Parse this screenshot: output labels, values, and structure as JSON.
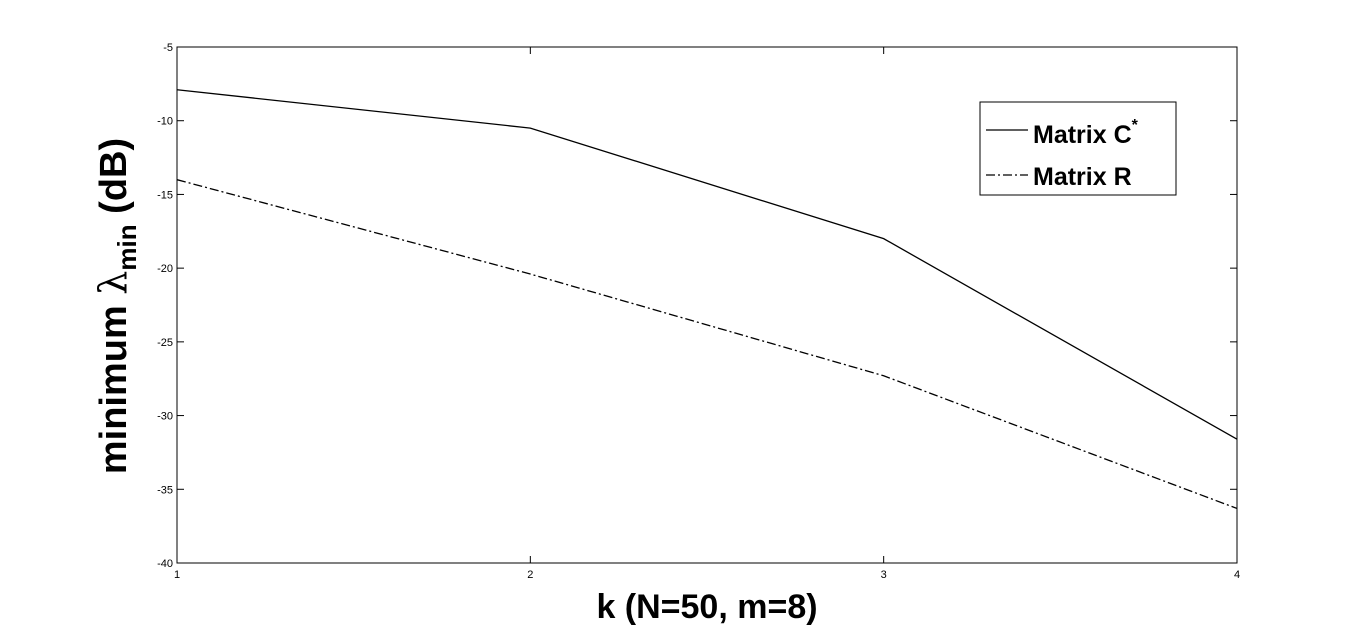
{
  "chart_data": {
    "type": "line",
    "x": [
      1,
      2,
      3,
      4
    ],
    "series": [
      {
        "name": "Matrix C",
        "name_superscript": "*",
        "values": [
          -7.9,
          -10.5,
          -18.0,
          -31.6
        ],
        "style": "solid",
        "color": "#000000"
      },
      {
        "name": "Matrix R",
        "values": [
          -14.0,
          -20.4,
          -27.3,
          -36.3
        ],
        "style": "dashdot",
        "color": "#000000"
      }
    ],
    "xlabel": "k (N=50, m=8)",
    "ylabel": {
      "prefix": "minimum ",
      "symbol": "λ",
      "subscript": "min",
      "suffix": " (dB)"
    },
    "xlim": [
      1,
      4
    ],
    "ylim": [
      -40,
      -5
    ],
    "xticks": [
      "1",
      "2",
      "3",
      "4"
    ],
    "yticks": [
      "-5",
      "-10",
      "-15",
      "-20",
      "-25",
      "-30",
      "-35",
      "-40"
    ],
    "ytick_values": [
      -5,
      -10,
      -15,
      -20,
      -25,
      -30,
      -35,
      -40
    ],
    "legend_position": "top-right",
    "grid": false
  }
}
